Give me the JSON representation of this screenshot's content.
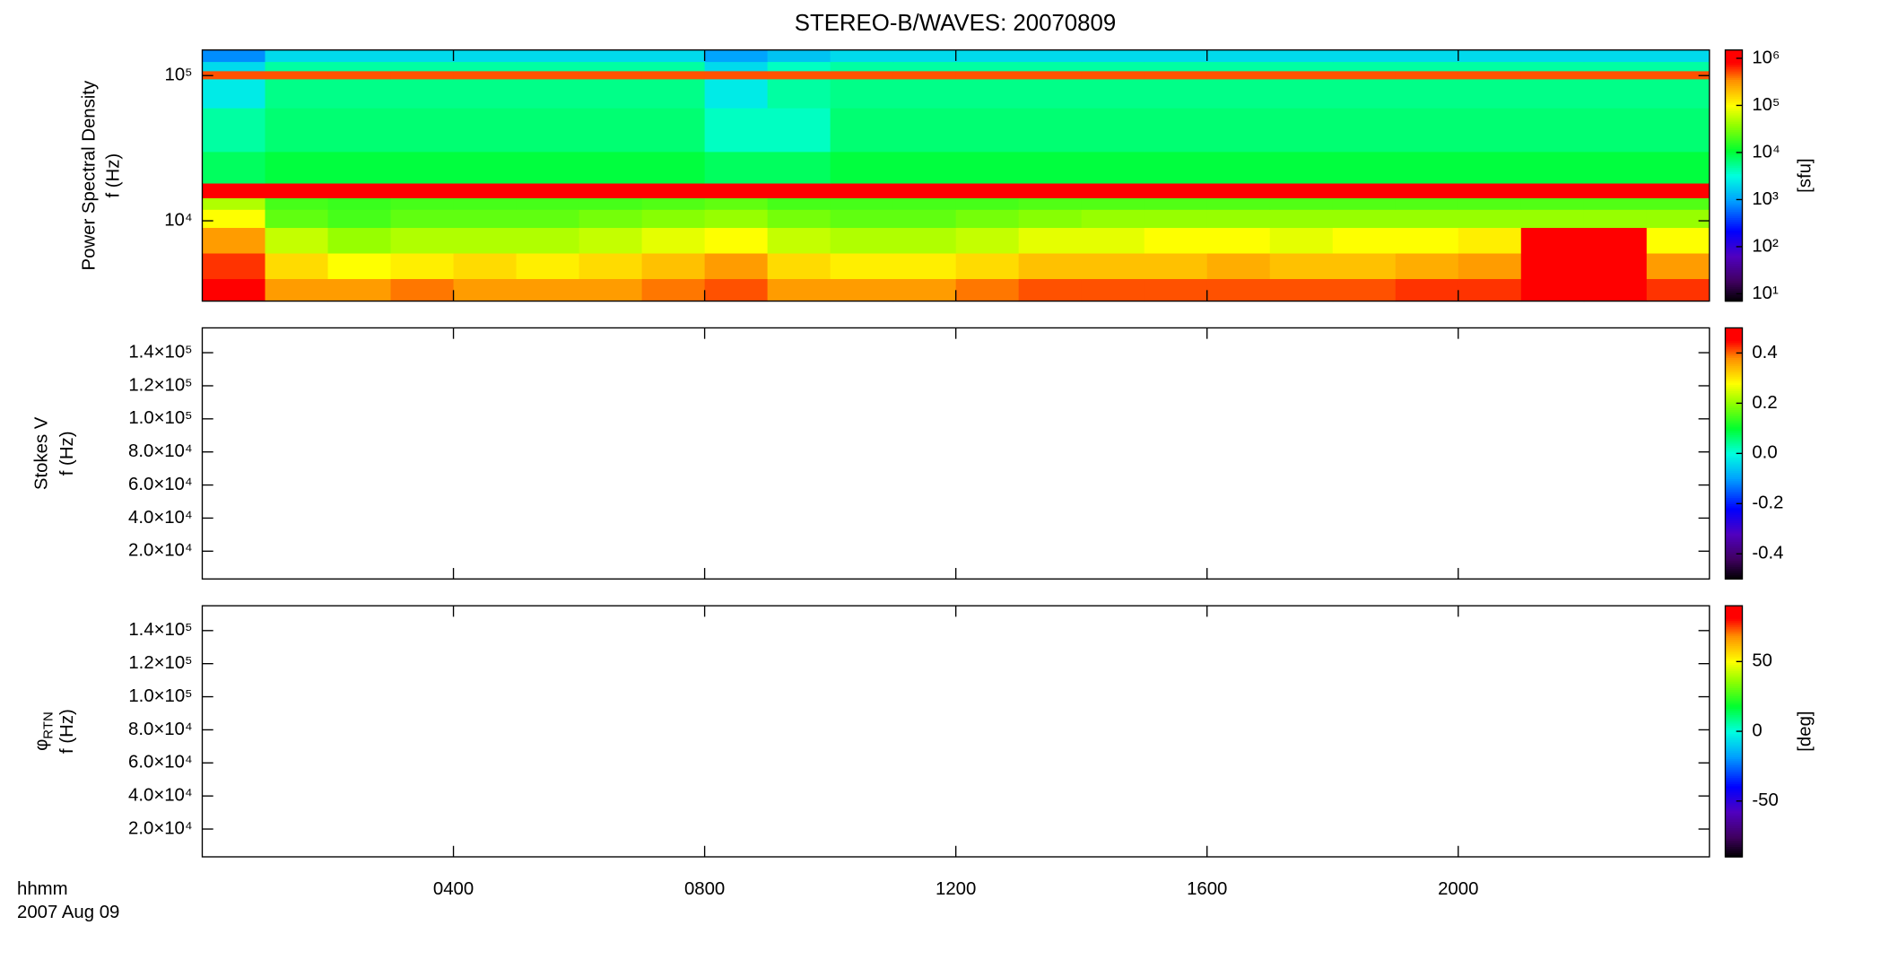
{
  "chart_data": [
    {
      "type": "heatmap",
      "title": "STEREO-B/WAVES: 20070809",
      "ylabel": [
        "Power Spectral Density",
        "f (Hz)"
      ],
      "xlim": [
        0,
        24
      ],
      "ylim": [
        2800,
        150000
      ],
      "ylog": true,
      "yticks": [
        {
          "value": 10000,
          "label": "10⁴"
        },
        {
          "value": 100000,
          "label": "10⁵"
        }
      ],
      "zlim": [
        7,
        1500000
      ],
      "zlog": true,
      "zlabel": "[sfu]",
      "zticks": [
        {
          "value": 10,
          "label": "10¹"
        },
        {
          "value": 100,
          "label": "10²"
        },
        {
          "value": 1000,
          "label": "10³"
        },
        {
          "value": 10000,
          "label": "10⁴"
        },
        {
          "value": 100000,
          "label": "10⁵"
        },
        {
          "value": 1000000,
          "label": "10⁶"
        }
      ],
      "colormap": "rainbow",
      "x": [
        0,
        1,
        2,
        3,
        4,
        5,
        6,
        7,
        8,
        9,
        10,
        11,
        12,
        13,
        14,
        15,
        16,
        17,
        18,
        19,
        20,
        21,
        22,
        23,
        24
      ],
      "y": [
        2800,
        4000,
        6000,
        9000,
        12000,
        14400,
        18200,
        30000,
        60000,
        95000,
        108000,
        125000,
        150000
      ],
      "z": [
        [
          1000000,
          300000,
          300000,
          400000,
          300000,
          300000,
          300000,
          400000,
          500000,
          300000,
          300000,
          300000,
          400000,
          500000,
          500000,
          500000,
          500000,
          500000,
          500000,
          600000,
          600000,
          1000000,
          1000000,
          600000
        ],
        [
          600000,
          150000,
          100000,
          120000,
          150000,
          120000,
          150000,
          200000,
          300000,
          150000,
          120000,
          120000,
          150000,
          200000,
          200000,
          200000,
          250000,
          200000,
          200000,
          250000,
          300000,
          1000000,
          1000000,
          300000
        ],
        [
          300000,
          60000,
          40000,
          50000,
          50000,
          50000,
          60000,
          80000,
          100000,
          60000,
          50000,
          50000,
          60000,
          80000,
          80000,
          100000,
          100000,
          80000,
          100000,
          100000,
          120000,
          1000000,
          1000000,
          100000
        ],
        [
          100000,
          25000,
          20000,
          25000,
          25000,
          25000,
          30000,
          35000,
          40000,
          30000,
          25000,
          25000,
          30000,
          35000,
          40000,
          40000,
          40000,
          40000,
          40000,
          40000,
          40000,
          40000,
          40000,
          40000
        ],
        [
          50000,
          20000,
          18000,
          20000,
          20000,
          20000,
          20000,
          22000,
          25000,
          20000,
          20000,
          20000,
          20000,
          22000,
          22000,
          22000,
          22000,
          22000,
          22000,
          22000,
          22000,
          22000,
          22000,
          22000
        ],
        [
          1200000,
          1000000,
          1000000,
          1000000,
          1000000,
          1000000,
          1000000,
          1000000,
          1000000,
          1000000,
          1000000,
          1000000,
          1000000,
          1000000,
          1000000,
          1000000,
          1000000,
          1000000,
          1000000,
          1000000,
          1000000,
          1000000,
          1000000,
          1000000
        ],
        [
          8000,
          10000,
          10000,
          10000,
          10000,
          10000,
          10000,
          10000,
          8000,
          8000,
          10000,
          10000,
          10000,
          10000,
          10000,
          10000,
          10000,
          10000,
          10000,
          10000,
          10000,
          10000,
          10000,
          10000
        ],
        [
          5000,
          7000,
          7000,
          7000,
          7000,
          7000,
          7000,
          7000,
          4000,
          4000,
          7000,
          7000,
          7000,
          7000,
          7000,
          7000,
          7000,
          7000,
          7000,
          7000,
          7000,
          7000,
          7000,
          7000
        ],
        [
          2500,
          6000,
          6000,
          6000,
          6000,
          6000,
          6000,
          6000,
          2500,
          5000,
          6000,
          6000,
          6000,
          6000,
          6000,
          6000,
          6000,
          6000,
          6000,
          6000,
          6000,
          6000,
          6000,
          6000
        ],
        [
          500000,
          500000,
          500000,
          500000,
          500000,
          500000,
          500000,
          500000,
          500000,
          500000,
          500000,
          500000,
          500000,
          500000,
          500000,
          500000,
          500000,
          500000,
          500000,
          500000,
          500000,
          500000,
          500000,
          500000
        ],
        [
          2000,
          5000,
          5000,
          5000,
          5000,
          5000,
          5000,
          5000,
          2000,
          4000,
          5000,
          5000,
          5000,
          5000,
          5000,
          5000,
          5000,
          5000,
          5000,
          5000,
          5000,
          5000,
          5000,
          5000
        ],
        [
          800,
          2000,
          2000,
          2000,
          2000,
          2000,
          2000,
          2000,
          1000,
          1500,
          2000,
          2000,
          2000,
          2000,
          2000,
          2000,
          2000,
          2000,
          2000,
          2000,
          2000,
          2000,
          2000,
          2000
        ]
      ]
    },
    {
      "type": "heatmap",
      "ylabel": [
        "Stokes V",
        "f (Hz)"
      ],
      "xlim": [
        0,
        24
      ],
      "ylim": [
        3200,
        155000
      ],
      "yticks": [
        {
          "value": 20000,
          "label": "2.0×10⁴"
        },
        {
          "value": 40000,
          "label": "4.0×10⁴"
        },
        {
          "value": 60000,
          "label": "6.0×10⁴"
        },
        {
          "value": 80000,
          "label": "8.0×10⁴"
        },
        {
          "value": 100000,
          "label": "1.0×10⁵"
        },
        {
          "value": 120000,
          "label": "1.2×10⁵"
        },
        {
          "value": 140000,
          "label": "1.4×10⁵"
        }
      ],
      "zlim": [
        -0.5,
        0.5
      ],
      "zticks": [
        -0.4,
        -0.2,
        {
          "value": 0,
          "label": "0.0"
        },
        0.2,
        0.4
      ],
      "colormap": "rainbow"
    },
    {
      "type": "heatmap",
      "ylabel": [
        "φ",
        "f (Hz)"
      ],
      "ylabel_sub": "RTN",
      "xlabel": [
        "hhmm",
        "2007 Aug 09"
      ],
      "xlim": [
        0,
        24
      ],
      "xticks": [
        {
          "value": 4,
          "label": "0400"
        },
        {
          "value": 8,
          "label": "0800"
        },
        {
          "value": 12,
          "label": "1200"
        },
        {
          "value": 16,
          "label": "1600"
        },
        {
          "value": 20,
          "label": "2000"
        }
      ],
      "ylim": [
        3200,
        155000
      ],
      "yticks": [
        {
          "value": 20000,
          "label": "2.0×10⁴"
        },
        {
          "value": 40000,
          "label": "4.0×10⁴"
        },
        {
          "value": 60000,
          "label": "6.0×10⁴"
        },
        {
          "value": 80000,
          "label": "8.0×10⁴"
        },
        {
          "value": 100000,
          "label": "1.0×10⁵"
        },
        {
          "value": 120000,
          "label": "1.2×10⁵"
        },
        {
          "value": 140000,
          "label": "1.4×10⁵"
        }
      ],
      "zlim": [
        -90,
        90
      ],
      "zticks": [
        -50,
        0,
        50
      ],
      "zlabel": "[deg]",
      "colormap": "rainbow"
    }
  ]
}
